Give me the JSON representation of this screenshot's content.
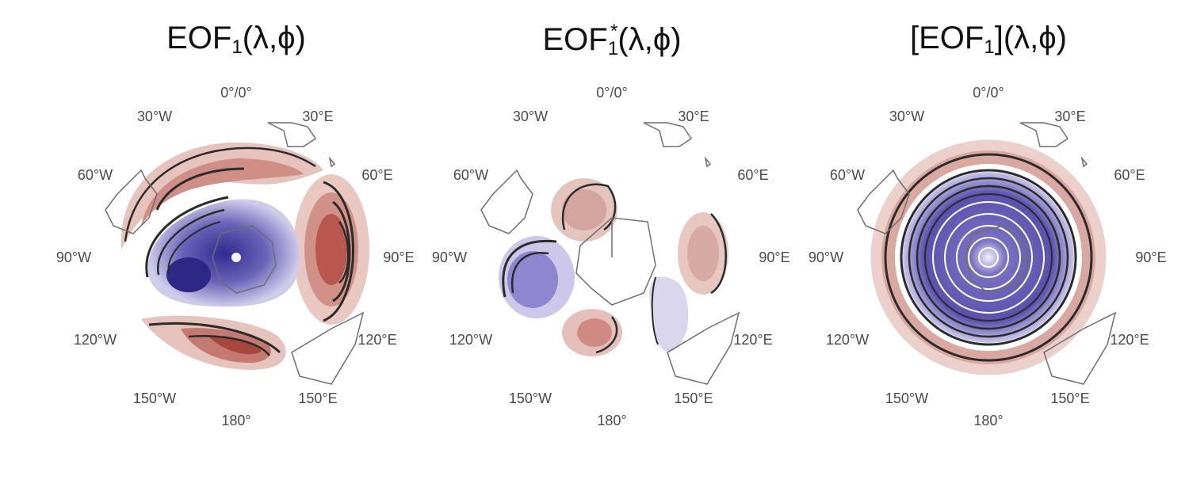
{
  "panels": [
    {
      "id": "full",
      "title_base": "EOF",
      "title_sub": "1",
      "title_sup": "",
      "title_brackets": false,
      "title_args": "(λ,ϕ)"
    },
    {
      "id": "eddy",
      "title_base": "EOF",
      "title_sub": "1",
      "title_sup": "*",
      "title_brackets": false,
      "title_args": "(λ,ϕ)"
    },
    {
      "id": "zonal",
      "title_base": "EOF",
      "title_sub": "1",
      "title_sup": "",
      "title_brackets": true,
      "title_args": "(λ,ϕ)"
    }
  ],
  "longitude_labels": {
    "top": "0°/0°",
    "w30": "30°W",
    "e30": "30°E",
    "w60": "60°W",
    "e60": "60°E",
    "w90": "90°W",
    "e90": "90°E",
    "w120": "120°W",
    "e120": "120°E",
    "w150": "150°W",
    "e150": "150°E",
    "bottom": "180°"
  },
  "colors": {
    "positive": "#b5584f",
    "positive_light": "#e3b9b3",
    "negative": "#5047a3",
    "negative_light": "#a9a3d6",
    "contour": "#2b2b2b",
    "coast": "#6e6e6e"
  }
}
